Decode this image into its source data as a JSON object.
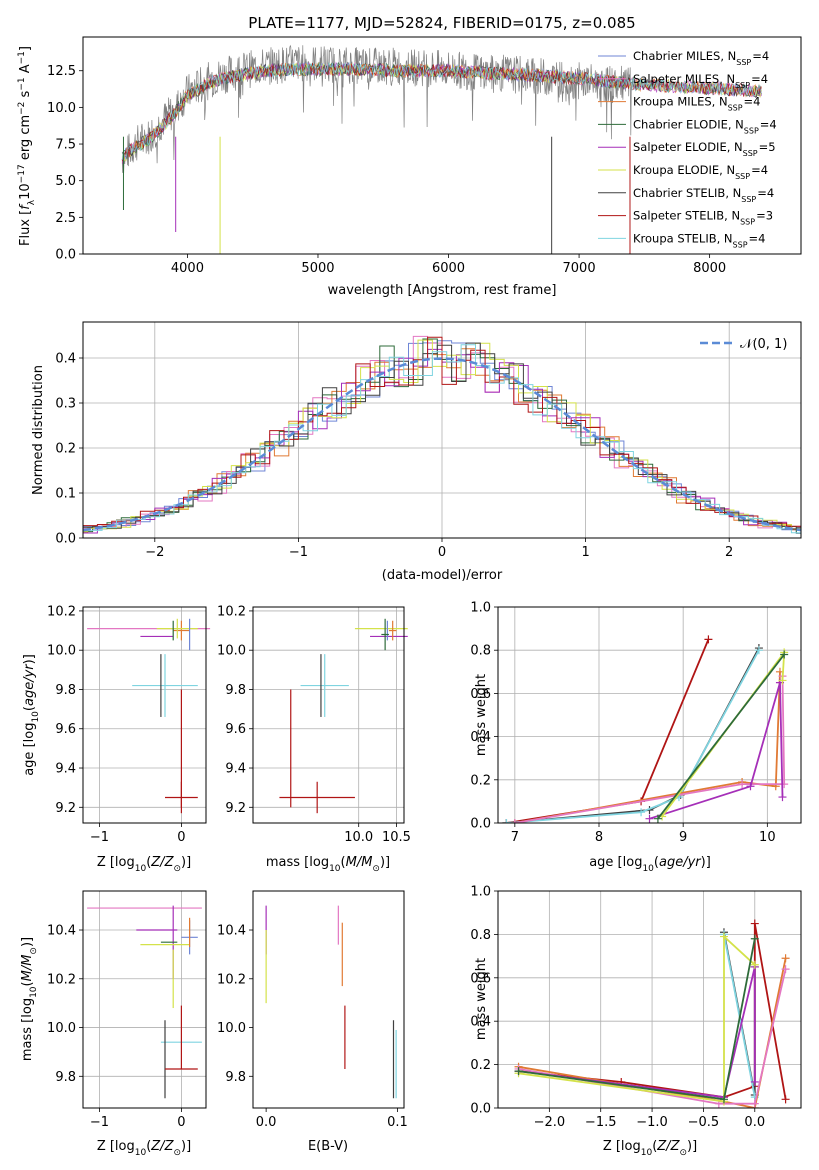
{
  "chart_data": [
    {
      "type": "line",
      "title": "PLATE=1177, MJD=52824, FIBERID=0175, z=0.085",
      "xlabel": "wavelength [Angstrom, rest frame]",
      "ylabel": "Flux [f_λ 10^-17 erg cm^-2 s^-1 A^-1]",
      "ylabel_parts": {
        "a": "Flux [",
        "b": "f",
        "c": "λ",
        "d": "10",
        "e": "−17",
        "f": " erg cm",
        "g": "−2",
        "h": " s",
        "i": "−1",
        "j": " A",
        "k": "−1",
        "l": "]"
      },
      "xlim": [
        3200,
        8700
      ],
      "ylim": [
        0,
        14.8
      ],
      "xticks": [
        "4000",
        "5000",
        "6000",
        "7000",
        "8000"
      ],
      "yticks": [
        "0.0",
        "2.5",
        "5.0",
        "7.5",
        "10.0",
        "12.5"
      ],
      "data_series": {
        "name": "",
        "color": "#808080",
        "x": [
          3500,
          3600,
          3700,
          3800,
          3900,
          4000,
          4200,
          4400,
          4600,
          4800,
          5000,
          5200,
          5400,
          5600,
          5800,
          6000,
          6200,
          6400,
          6600,
          6800,
          7000,
          7200,
          7400
        ],
        "y": [
          6.5,
          7.5,
          8.0,
          9.0,
          9.8,
          11.0,
          12.0,
          12.5,
          12.8,
          13.0,
          13.0,
          12.9,
          12.8,
          12.8,
          12.7,
          12.6,
          12.4,
          12.3,
          12.2,
          12.0,
          11.8,
          11.6,
          11.5
        ]
      },
      "series": [
        {
          "name": "Chabrier MILES",
          "nssp": "4",
          "color": "#6f86d6"
        },
        {
          "name": "Salpeter MILES",
          "nssp": "4",
          "color": "#e377c2"
        },
        {
          "name": "Kroupa MILES",
          "nssp": "4",
          "color": "#e07a34"
        },
        {
          "name": "Chabrier ELODIE",
          "nssp": "4",
          "color": "#2e6b3a"
        },
        {
          "name": "Salpeter ELODIE",
          "nssp": "5",
          "color": "#a52fb8"
        },
        {
          "name": "Kroupa ELODIE",
          "nssp": "4",
          "color": "#d4e24a"
        },
        {
          "name": "Chabrier STELIB",
          "nssp": "4",
          "color": "#404040"
        },
        {
          "name": "Salpeter STELIB",
          "nssp": "3",
          "color": "#b01515"
        },
        {
          "name": "Kroupa STELIB",
          "nssp": "4",
          "color": "#7fd4e0"
        }
      ],
      "model_x": [
        3500,
        3600,
        3700,
        3800,
        3900,
        4000,
        4200,
        4400,
        4600,
        4800,
        5000,
        5200,
        5400,
        5600,
        5800,
        6000,
        6200,
        6400,
        6600,
        6800,
        7000,
        7200,
        7400,
        7600,
        7800,
        8000,
        8200,
        8400
      ],
      "model_y": [
        6.6,
        7.3,
        7.8,
        8.6,
        9.6,
        10.8,
        11.8,
        12.2,
        12.5,
        12.6,
        12.6,
        12.6,
        12.6,
        12.5,
        12.5,
        12.5,
        12.4,
        12.3,
        12.2,
        12.1,
        12.0,
        11.8,
        11.6,
        11.5,
        11.4,
        11.3,
        11.2,
        11.1
      ],
      "legend": "right"
    },
    {
      "type": "bar",
      "title": "",
      "xlabel": "(data-model)/error",
      "ylabel": "Normed distribution",
      "xlim": [
        -2.5,
        2.5
      ],
      "ylim": [
        0,
        0.48
      ],
      "xticks": [
        "−2",
        "−1",
        "0",
        "1",
        "2"
      ],
      "yticks": [
        "0.0",
        "0.1",
        "0.2",
        "0.3",
        "0.4"
      ],
      "bin_width": 0.1,
      "reference_curve": {
        "name": "𝒩(0, 1)",
        "color": "#5b8bd6"
      },
      "legend": "top-right"
    },
    {
      "type": "scatter",
      "xlabel": "Z [log10(Z/Z⊙)]",
      "xlabel_parts": {
        "a": "Z [log",
        "b": "10",
        "c": "(",
        "d": "Z/Z",
        "e": "⊙",
        "f": ")]"
      },
      "ylabel": "age [log10(age/yr)]",
      "ylabel_parts": {
        "a": "age  [log",
        "b": "10",
        "c": "(",
        "d": "age/yr",
        "e": ")]"
      },
      "xlim": [
        -1.2,
        0.3
      ],
      "ylim": [
        9.12,
        10.22
      ],
      "xticks": [
        "−1",
        "0"
      ],
      "yticks": [
        "9.2",
        "9.4",
        "9.6",
        "9.8",
        "10.0",
        "10.2"
      ]
    },
    {
      "type": "scatter",
      "xlabel": "mass [log10(M/M⊙)]",
      "xlabel_parts": {
        "a": "mass [log",
        "b": "10",
        "c": "(",
        "d": "M/M",
        "e": "⊙",
        "f": ")]"
      },
      "ylabel": "",
      "xlim": [
        8.6,
        10.6
      ],
      "ylim": [
        9.12,
        10.22
      ],
      "xticks": [
        "10.0",
        "10.5"
      ],
      "yticks": [
        "9.2",
        "9.4",
        "9.6",
        "9.8",
        "10.0",
        "10.2"
      ]
    },
    {
      "type": "line",
      "xlabel": "age [log10(age/yr)]",
      "xlabel_parts": {
        "a": "age  [log",
        "b": "10",
        "c": "(",
        "d": "age/yr",
        "e": ")]"
      },
      "ylabel": "mass weight",
      "xlim": [
        6.8,
        10.4
      ],
      "ylim": [
        0,
        1
      ],
      "xticks": [
        "7",
        "8",
        "9",
        "10"
      ],
      "yticks": [
        "0.0",
        "0.2",
        "0.4",
        "0.6",
        "0.8",
        "1.0"
      ],
      "series": [
        {
          "color": "#b01515",
          "x": [
            6.9,
            8.5,
            9.3
          ],
          "y": [
            0.0,
            0.1,
            0.85
          ]
        },
        {
          "color": "#404040",
          "x": [
            6.9,
            8.6,
            8.97,
            9.9
          ],
          "y": [
            0.0,
            0.06,
            0.13,
            0.81
          ]
        },
        {
          "color": "#7fd4e0",
          "x": [
            6.9,
            8.5,
            8.95,
            9.9
          ],
          "y": [
            0.0,
            0.05,
            0.12,
            0.8
          ]
        },
        {
          "color": "#e07a34",
          "x": [
            7.0,
            9.7,
            10.1,
            10.15
          ],
          "y": [
            0.0,
            0.19,
            0.17,
            0.7
          ]
        },
        {
          "color": "#e377c2",
          "x": [
            7.0,
            9.7,
            10.2,
            10.18
          ],
          "y": [
            0.0,
            0.18,
            0.18,
            0.68
          ]
        },
        {
          "color": "#a52fb8",
          "x": [
            8.6,
            9.8,
            10.15,
            10.18
          ],
          "y": [
            0.02,
            0.17,
            0.65,
            0.12
          ]
        },
        {
          "color": "#d4e24a",
          "x": [
            8.75,
            10.2,
            10.18
          ],
          "y": [
            0.03,
            0.79,
            0.66
          ]
        },
        {
          "color": "#2e6b3a",
          "x": [
            8.7,
            10.2
          ],
          "y": [
            0.02,
            0.78
          ]
        }
      ]
    },
    {
      "type": "scatter",
      "xlabel": "Z [log10(Z/Z⊙)]",
      "xlabel_parts": {
        "a": "Z [log",
        "b": "10",
        "c": "(",
        "d": "Z/Z",
        "e": "⊙",
        "f": ")]"
      },
      "ylabel": "mass [log10(M/M⊙)]",
      "ylabel_parts": {
        "a": "mass [log",
        "b": "10",
        "c": "(",
        "d": "M/M",
        "e": "⊙",
        "f": ")]"
      },
      "xlim": [
        -1.2,
        0.3
      ],
      "ylim": [
        9.67,
        10.56
      ],
      "xticks": [
        "−1",
        "0"
      ],
      "yticks": [
        "9.8",
        "10.0",
        "10.2",
        "10.4"
      ]
    },
    {
      "type": "scatter",
      "xlabel": "E(B-V)",
      "ylabel": "",
      "xlim": [
        -0.01,
        0.105
      ],
      "ylim": [
        9.67,
        10.56
      ],
      "xticks": [
        "0.0",
        "0.1"
      ],
      "yticks": [
        "9.8",
        "10.0",
        "10.2",
        "10.4"
      ]
    },
    {
      "type": "line",
      "xlabel": "Z [log10(Z/Z⊙)]",
      "xlabel_parts": {
        "a": "Z [log",
        "b": "10",
        "c": "(",
        "d": "Z/Z",
        "e": "⊙",
        "f": ")]"
      },
      "ylabel": "mass weight",
      "xlim": [
        -2.5,
        0.45
      ],
      "ylim": [
        0,
        1
      ],
      "xticks": [
        "−2.0",
        "−1.5",
        "−1.0",
        "−0.5",
        "0.0"
      ],
      "yticks": [
        "0.0",
        "0.2",
        "0.4",
        "0.6",
        "0.8",
        "1.0"
      ],
      "series": [
        {
          "color": "#b01515",
          "x": [
            -2.3,
            -1.3,
            -0.3,
            0.0,
            0.0,
            0.3
          ],
          "y": [
            0.17,
            0.12,
            0.05,
            0.1,
            0.85,
            0.04
          ]
        },
        {
          "color": "#404040",
          "x": [
            -0.3,
            0.0,
            0.0
          ],
          "y": [
            0.81,
            0.06,
            0.65
          ]
        },
        {
          "color": "#7fd4e0",
          "x": [
            -0.3,
            0.0
          ],
          "y": [
            0.8,
            0.05
          ]
        },
        {
          "color": "#e07a34",
          "x": [
            -2.3,
            -0.3,
            0.0,
            0.3
          ],
          "y": [
            0.19,
            0.03,
            0.0,
            0.69
          ]
        },
        {
          "color": "#e377c2",
          "x": [
            -2.3,
            -0.35,
            0.0,
            0.3
          ],
          "y": [
            0.18,
            0.02,
            0.02,
            0.64
          ]
        },
        {
          "color": "#a52fb8",
          "x": [
            -2.3,
            -0.3,
            0.0,
            0.0
          ],
          "y": [
            0.17,
            0.05,
            0.65,
            0.12
          ]
        },
        {
          "color": "#d4e24a",
          "x": [
            -2.3,
            -0.3,
            -0.3,
            0.0
          ],
          "y": [
            0.16,
            0.03,
            0.79,
            0.66
          ]
        },
        {
          "color": "#2e6b3a",
          "x": [
            -2.3,
            -0.3,
            0.0
          ],
          "y": [
            0.17,
            0.04,
            0.78
          ]
        }
      ]
    }
  ]
}
